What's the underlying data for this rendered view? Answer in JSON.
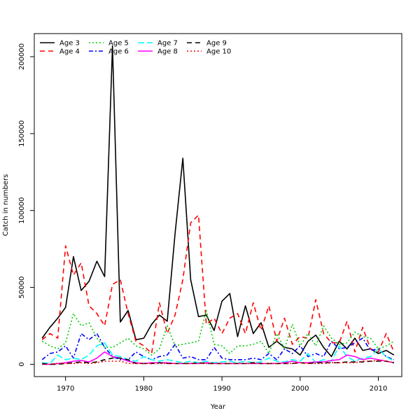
{
  "chart_data": {
    "type": "line",
    "title": "",
    "xlabel": "Year",
    "ylabel": "Catch in numbers",
    "xlim": [
      1966,
      2013
    ],
    "ylim": [
      -8000,
      215000
    ],
    "xticks": [
      1970,
      1980,
      1990,
      2000,
      2010
    ],
    "yticks": [
      0,
      50000,
      100000,
      150000,
      200000
    ],
    "grid": false,
    "legend_position": "top-left",
    "x": [
      1967,
      1968,
      1969,
      1970,
      1971,
      1972,
      1973,
      1974,
      1975,
      1976,
      1977,
      1978,
      1979,
      1980,
      1981,
      1982,
      1983,
      1984,
      1985,
      1986,
      1987,
      1988,
      1989,
      1990,
      1991,
      1992,
      1993,
      1994,
      1995,
      1996,
      1997,
      1998,
      1999,
      2000,
      2001,
      2002,
      2003,
      2004,
      2005,
      2006,
      2007,
      2008,
      2009,
      2010,
      2011,
      2012
    ],
    "series": [
      {
        "name": "Age 3",
        "color": "#000000",
        "dash": "solid",
        "width": 1.6,
        "values": [
          17000,
          24000,
          30000,
          37000,
          70000,
          48000,
          54000,
          67000,
          57000,
          207000,
          27500,
          35000,
          16000,
          17000,
          26000,
          32000,
          28000,
          85000,
          134000,
          55000,
          31000,
          32000,
          22000,
          41000,
          46000,
          18000,
          38000,
          20000,
          27000,
          11000,
          15000,
          11000,
          10000,
          6000,
          15000,
          19000,
          11000,
          5000,
          15000,
          10000,
          17000,
          9000,
          10000,
          7000,
          9000,
          6000
        ]
      },
      {
        "name": "Age 4",
        "color": "#ff0000",
        "dash": "7,5",
        "width": 1.6,
        "values": [
          16000,
          20000,
          17000,
          77000,
          58000,
          66000,
          38000,
          33000,
          25000,
          52000,
          55000,
          33000,
          15000,
          12000,
          7000,
          40000,
          20000,
          32000,
          55000,
          92000,
          97000,
          26000,
          30000,
          20000,
          30000,
          33000,
          20000,
          40000,
          22000,
          38000,
          15000,
          30000,
          13000,
          18000,
          17000,
          42000,
          20000,
          14000,
          14000,
          28000,
          8000,
          24000,
          10000,
          8000,
          20000,
          8000
        ]
      },
      {
        "name": "Age 5",
        "color": "#00cd00",
        "dash": "2,3",
        "width": 1.6,
        "values": [
          15000,
          12000,
          10000,
          14000,
          33000,
          25000,
          27000,
          17000,
          11000,
          11000,
          14000,
          17000,
          12000,
          10000,
          6000,
          10000,
          25000,
          12000,
          13000,
          14000,
          15000,
          35000,
          13000,
          12000,
          7000,
          12000,
          12000,
          13000,
          15000,
          7000,
          20000,
          10000,
          26000,
          12000,
          20000,
          12000,
          25000,
          17000,
          13000,
          14000,
          21000,
          18000,
          17000,
          10000,
          12000,
          15000
        ]
      },
      {
        "name": "Age 6",
        "color": "#0000ff",
        "dash": "6,3,2,3",
        "width": 1.6,
        "values": [
          3000,
          7000,
          8000,
          12000,
          4000,
          20000,
          16000,
          20000,
          11000,
          5000,
          3000,
          3000,
          8000,
          5000,
          3000,
          5000,
          6000,
          13000,
          4000,
          5000,
          3000,
          3000,
          11000,
          4000,
          3000,
          3000,
          3000,
          4000,
          3000,
          7000,
          3000,
          10000,
          7000,
          12000,
          5000,
          7000,
          5000,
          15000,
          10000,
          11000,
          14000,
          17000,
          9000,
          10000,
          5000,
          3000
        ]
      },
      {
        "name": "Age 7",
        "color": "#00ffff",
        "dash": "9,4",
        "width": 1.6,
        "values": [
          1000,
          500,
          6000,
          3000,
          4000,
          3000,
          6000,
          12000,
          14000,
          6000,
          5000,
          3000,
          2000,
          5000,
          3000,
          2000,
          3000,
          2000,
          1000,
          2000,
          1000,
          2000,
          1000,
          1500,
          2000,
          1000,
          2000,
          1000,
          1500,
          4000,
          2000,
          1500,
          3000,
          2000,
          7000,
          1000,
          3000,
          2000,
          12000,
          5000,
          2000,
          4000,
          5000,
          10000,
          5000,
          2000
        ]
      },
      {
        "name": "Age 8",
        "color": "#ff00ff",
        "dash": "solid",
        "width": 1.6,
        "values": [
          0,
          0,
          500,
          1000,
          2000,
          2500,
          1500,
          4000,
          8000,
          5000,
          4000,
          2000,
          1000,
          500,
          1000,
          1000,
          1000,
          500,
          500,
          500,
          500,
          1000,
          500,
          500,
          500,
          500,
          500,
          500,
          500,
          500,
          500,
          1000,
          2000,
          1000,
          1000,
          1500,
          1500,
          2500,
          3000,
          6000,
          5000,
          3000,
          4000,
          3000,
          2000,
          1000
        ]
      },
      {
        "name": "Age 9",
        "color": "#000000",
        "dash": "7,5",
        "width": 1.6,
        "values": [
          500,
          0,
          0,
          500,
          1000,
          1500,
          1000,
          1500,
          3000,
          4000,
          4000,
          3000,
          500,
          500,
          500,
          1000,
          500,
          500,
          500,
          500,
          1000,
          500,
          500,
          500,
          500,
          500,
          500,
          1000,
          500,
          500,
          500,
          500,
          500,
          1000,
          500,
          1000,
          1000,
          1000,
          1000,
          1500,
          1500,
          1500,
          2000,
          2000,
          2000,
          1000
        ]
      },
      {
        "name": "Age 10",
        "color": "#ff0000",
        "dash": "2,3",
        "width": 1.6,
        "values": [
          0,
          0,
          500,
          500,
          500,
          1000,
          500,
          1000,
          2000,
          2000,
          2000,
          500,
          500,
          500,
          500,
          500,
          500,
          500,
          500,
          500,
          500,
          500,
          500,
          500,
          500,
          500,
          500,
          500,
          500,
          500,
          500,
          500,
          500,
          1000,
          500,
          500,
          500,
          1000,
          1000,
          1000,
          1000,
          2000,
          2000,
          2500,
          2000,
          1000
        ]
      }
    ]
  }
}
